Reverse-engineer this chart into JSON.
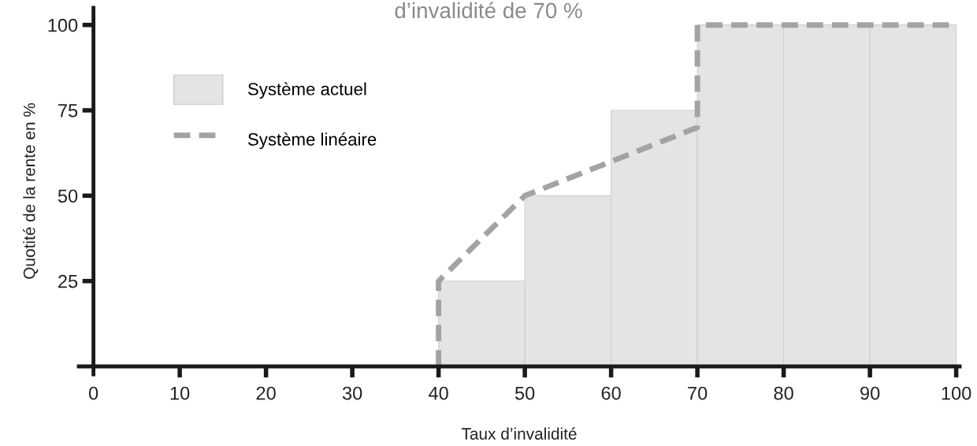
{
  "chart_data": {
    "type": "histogram",
    "title": "d’invalidité de 70 %",
    "xlabel": "Taux d’invalidité",
    "ylabel": "Quotité de la rente en %",
    "series": [
      {
        "name": "Système actuel",
        "color": "#e4e4e4",
        "bins": [
          40,
          50,
          60,
          70,
          80,
          90,
          100
        ],
        "values": [
          25,
          50,
          75,
          100,
          100,
          100
        ]
      },
      {
        "type": "line",
        "name": "Système linéaire",
        "color": "#a2a3a5",
        "line_style": "dashed",
        "x": [
          40,
          40,
          50,
          60,
          70,
          70,
          100
        ],
        "values": [
          0,
          25,
          50,
          60,
          70,
          100,
          100
        ]
      }
    ],
    "xlim": [
      -1.7,
      100.4
    ],
    "ylim": [
      -2.3,
      105
    ],
    "xticks": [
      0,
      10,
      20,
      30,
      40,
      50,
      60,
      70,
      80,
      90,
      100
    ],
    "yticks": [
      25,
      50,
      75,
      100
    ],
    "grid": false,
    "legend": "top left"
  }
}
